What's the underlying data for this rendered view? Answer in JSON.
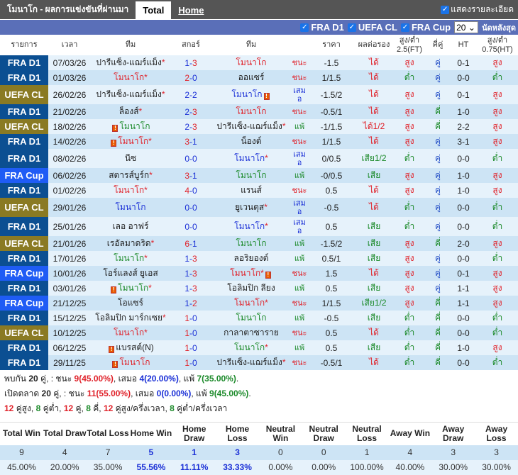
{
  "header": {
    "title": "โมนาโก - ผลการแข่งขันที่ผ่านมา",
    "tabs": [
      "Total",
      "Home"
    ],
    "show_detail": "แสดงรายละเอียด"
  },
  "filters": {
    "leagues": [
      "FRA D1",
      "UEFA CL",
      "FRA Cup"
    ],
    "count": "20",
    "last_label": "นัดหลังสุด"
  },
  "columns": [
    "รายการ",
    "เวลา",
    "ทีม",
    "สกอร์",
    "ทีม",
    "ราคา",
    "ผลต่อรอง",
    "สูง/ต่ำ 2.5(FT)",
    "คี่คู่",
    "HT",
    "สูง/ต่ำ 0.75(HT)"
  ],
  "colors": {
    "FRA D1": "#0b4f92",
    "UEFA CL": "#8a7a23",
    "FRA Cup": "#1f5cf5",
    "win": "#e0222a",
    "lose": "#1c8a2a",
    "draw": "#1a2fd6"
  },
  "matches": [
    {
      "league": "FRA D1",
      "date": "07/03/26",
      "home": {
        "name": "ปารีแซ็ง-แฌร์แม็ง",
        "star": "*"
      },
      "score": "1-3",
      "away": {
        "name": "โมนาโก",
        "mc": "win"
      },
      "result": "ชนะ",
      "odds": "-1.5",
      "ah": "ได้",
      "ou": "สูง",
      "oe": "คู่",
      "ht": "0-1",
      "htou": "สูง"
    },
    {
      "league": "FRA D1",
      "date": "01/03/26",
      "home": {
        "name": "โมนาโก",
        "star": "*",
        "mc": "win"
      },
      "score": "2-0",
      "away": {
        "name": "ออแซร์"
      },
      "result": "ชนะ",
      "odds": "1/1.5",
      "ah": "ได้",
      "ou": "ต่ำ",
      "oe": "คู่",
      "ht": "0-0",
      "htou": "ต่ำ"
    },
    {
      "league": "UEFA CL",
      "date": "26/02/26",
      "home": {
        "name": "ปารีแซ็ง-แฌร์แม็ง",
        "star": "*"
      },
      "score": "2-2",
      "away": {
        "name": "โมนาโก",
        "mc": "draw",
        "card": "after"
      },
      "result": "เสมอ",
      "odds": "-1.5/2",
      "ah": "ได้",
      "ou": "สูง",
      "oe": "คู่",
      "ht": "0-1",
      "htou": "สูง"
    },
    {
      "league": "FRA D1",
      "date": "21/02/26",
      "home": {
        "name": "ล็องส์",
        "star": "*"
      },
      "score": "2-3",
      "away": {
        "name": "โมนาโก",
        "mc": "win"
      },
      "result": "ชนะ",
      "odds": "-0.5/1",
      "ah": "ได้",
      "ou": "สูง",
      "oe": "คี่",
      "ht": "1-0",
      "htou": "สูง"
    },
    {
      "league": "UEFA CL",
      "date": "18/02/26",
      "home": {
        "name": "โมนาโก",
        "mc": "lose",
        "card": "before"
      },
      "score": "2-3",
      "away": {
        "name": "ปารีแซ็ง-แฌร์แม็ง",
        "star": "*"
      },
      "result": "แพ้",
      "odds": "-1/1.5",
      "ah": "ได้1/2",
      "ou": "สูง",
      "oe": "คี่",
      "ht": "2-2",
      "htou": "สูง"
    },
    {
      "league": "FRA D1",
      "date": "14/02/26",
      "home": {
        "name": "โมนาโก",
        "star": "*",
        "mc": "win",
        "card": "before"
      },
      "score": "3-1",
      "away": {
        "name": "น็องต์"
      },
      "result": "ชนะ",
      "odds": "1/1.5",
      "ah": "ได้",
      "ou": "สูง",
      "oe": "คู่",
      "ht": "3-1",
      "htou": "สูง"
    },
    {
      "league": "FRA D1",
      "date": "08/02/26",
      "home": {
        "name": "นีซ"
      },
      "score": "0-0",
      "away": {
        "name": "โมนาโก",
        "star": "*",
        "mc": "draw"
      },
      "result": "เสมอ",
      "odds": "0/0.5",
      "ah": "เสีย1/2",
      "ou": "ต่ำ",
      "oe": "คู่",
      "ht": "0-0",
      "htou": "ต่ำ"
    },
    {
      "league": "FRA Cup",
      "date": "06/02/26",
      "home": {
        "name": "สตารส์บูร์ก",
        "star": "*"
      },
      "score": "3-1",
      "away": {
        "name": "โมนาโก",
        "mc": "lose"
      },
      "result": "แพ้",
      "odds": "-0/0.5",
      "ah": "เสีย",
      "ou": "สูง",
      "oe": "คู่",
      "ht": "1-0",
      "htou": "สูง"
    },
    {
      "league": "FRA D1",
      "date": "01/02/26",
      "home": {
        "name": "โมนาโก",
        "star": "*",
        "mc": "win"
      },
      "score": "4-0",
      "away": {
        "name": "แรนส์"
      },
      "result": "ชนะ",
      "odds": "0.5",
      "ah": "ได้",
      "ou": "สูง",
      "oe": "คู่",
      "ht": "1-0",
      "htou": "สูง"
    },
    {
      "league": "UEFA CL",
      "date": "29/01/26",
      "home": {
        "name": "โมนาโก",
        "mc": "draw"
      },
      "score": "0-0",
      "away": {
        "name": "ยูเวนตุส",
        "star": "*"
      },
      "result": "เสมอ",
      "odds": "-0.5",
      "ah": "ได้",
      "ou": "ต่ำ",
      "oe": "คู่",
      "ht": "0-0",
      "htou": "ต่ำ"
    },
    {
      "league": "FRA D1",
      "date": "25/01/26",
      "home": {
        "name": "เลอ อาฟร์"
      },
      "score": "0-0",
      "away": {
        "name": "โมนาโก",
        "star": "*",
        "mc": "draw"
      },
      "result": "เสมอ",
      "odds": "0.5",
      "ah": "เสีย",
      "ou": "ต่ำ",
      "oe": "คู่",
      "ht": "0-0",
      "htou": "ต่ำ"
    },
    {
      "league": "UEFA CL",
      "date": "21/01/26",
      "home": {
        "name": "เรอัลมาดริด",
        "star": "*"
      },
      "score": "6-1",
      "away": {
        "name": "โมนาโก",
        "mc": "lose"
      },
      "result": "แพ้",
      "odds": "-1.5/2",
      "ah": "เสีย",
      "ou": "สูง",
      "oe": "คี่",
      "ht": "2-0",
      "htou": "สูง"
    },
    {
      "league": "FRA D1",
      "date": "17/01/26",
      "home": {
        "name": "โมนาโก",
        "star": "*",
        "mc": "lose"
      },
      "score": "1-3",
      "away": {
        "name": "ลอริยองต์"
      },
      "result": "แพ้",
      "odds": "0.5/1",
      "ah": "เสีย",
      "ou": "สูง",
      "oe": "คู่",
      "ht": "0-0",
      "htou": "ต่ำ"
    },
    {
      "league": "FRA Cup",
      "date": "10/01/26",
      "home": {
        "name": "โอร์แลงส์ ยูเอส"
      },
      "score": "1-3",
      "away": {
        "name": "โมนาโก",
        "star": "*",
        "mc": "win",
        "card": "after"
      },
      "result": "ชนะ",
      "odds": "1.5",
      "ah": "ได้",
      "ou": "สูง",
      "oe": "คู่",
      "ht": "0-1",
      "htou": "สูง"
    },
    {
      "league": "FRA D1",
      "date": "03/01/26",
      "home": {
        "name": "โมนาโก",
        "star": "*",
        "mc": "lose",
        "card": "before"
      },
      "score": "1-3",
      "away": {
        "name": "โอลิมปิก ลียง"
      },
      "result": "แพ้",
      "odds": "0.5",
      "ah": "เสีย",
      "ou": "สูง",
      "oe": "คู่",
      "ht": "1-1",
      "htou": "สูง"
    },
    {
      "league": "FRA Cup",
      "date": "21/12/25",
      "home": {
        "name": "โอแซร์"
      },
      "score": "1-2",
      "away": {
        "name": "โมนาโก",
        "star": "*",
        "mc": "win"
      },
      "result": "ชนะ",
      "odds": "1/1.5",
      "ah": "เสีย1/2",
      "ou": "สูง",
      "oe": "คี่",
      "ht": "1-1",
      "htou": "สูง"
    },
    {
      "league": "FRA D1",
      "date": "15/12/25",
      "home": {
        "name": "โอลิมปิก มาร์กเซย",
        "star": "*"
      },
      "score": "1-0",
      "away": {
        "name": "โมนาโก",
        "mc": "lose"
      },
      "result": "แพ้",
      "odds": "-0.5",
      "ah": "เสีย",
      "ou": "ต่ำ",
      "oe": "คี่",
      "ht": "0-0",
      "htou": "ต่ำ"
    },
    {
      "league": "UEFA CL",
      "date": "10/12/25",
      "home": {
        "name": "โมนาโก",
        "star": "*",
        "mc": "win"
      },
      "score": "1-0",
      "away": {
        "name": "กาลาตาซาราย"
      },
      "result": "ชนะ",
      "odds": "0.5",
      "ah": "ได้",
      "ou": "ต่ำ",
      "oe": "คี่",
      "ht": "0-0",
      "htou": "ต่ำ"
    },
    {
      "league": "FRA D1",
      "date": "06/12/25",
      "home": {
        "name": "แบรสต์(N)",
        "card": "before"
      },
      "score": "1-0",
      "away": {
        "name": "โมนาโก",
        "star": "*",
        "mc": "lose"
      },
      "result": "แพ้",
      "odds": "0.5",
      "ah": "เสีย",
      "ou": "ต่ำ",
      "oe": "คี่",
      "ht": "1-0",
      "htou": "สูง"
    },
    {
      "league": "FRA D1",
      "date": "29/11/25",
      "home": {
        "name": "โมนาโก",
        "mc": "win",
        "card": "before"
      },
      "score": "1-0",
      "away": {
        "name": "ปารีแซ็ง-แฌร์แม็ง",
        "star": "*"
      },
      "result": "ชนะ",
      "odds": "-0.5/1",
      "ah": "ได้",
      "ou": "ต่ำ",
      "oe": "คี่",
      "ht": "0-0",
      "htou": "ต่ำ"
    }
  ],
  "summary": {
    "line1": {
      "a": "พบกัน ",
      "n": "20",
      "b": " คู่, : ชนะ ",
      "w": "9",
      "wp": "(45.00%)",
      "c": ", เสมอ ",
      "d": "4",
      "dp": "(20.00%)",
      "e": ", แพ้ ",
      "l": "7",
      "lp": "(35.00%)",
      "f": "."
    },
    "line2": {
      "a": "เปิดตลาด ",
      "n": "20",
      "b": " คู่, : ชนะ ",
      "w": "11",
      "wp": "(55.00%)",
      "c": ", เสมอ ",
      "d": "0",
      "dp": "(0.00%)",
      "e": ", แพ้ ",
      "l": "9",
      "lp": "(45.00%)",
      "f": "."
    },
    "line3": [
      {
        "n": "12",
        "t": " คู่สูง, ",
        "c": "win"
      },
      {
        "n": "8",
        "t": " คู่ต่ำ, ",
        "c": "lose"
      },
      {
        "n": "12",
        "t": " คู่, ",
        "c": "win"
      },
      {
        "n": "8",
        "t": " คี่, ",
        "c": "lose"
      },
      {
        "n": "12",
        "t": " คู่สูง/ครึ่งเวลา, ",
        "c": "win"
      },
      {
        "n": "8",
        "t": " คู่ต่ำ/ครึ่งเวลา",
        "c": "lose"
      }
    ]
  },
  "stats": {
    "headers": [
      "Total Win",
      "Total Draw",
      "Total Loss",
      "Home Win",
      "Home Draw",
      "Home Loss",
      "Neutral Win",
      "Neutral Draw",
      "Neutral Loss",
      "Away Win",
      "Away Draw",
      "Away Loss"
    ],
    "counts": [
      "9",
      "4",
      "7",
      "5",
      "1",
      "3",
      "0",
      "0",
      "1",
      "4",
      "3",
      "3"
    ],
    "percents": [
      "45.00%",
      "20.00%",
      "35.00%",
      "55.56%",
      "11.11%",
      "33.33%",
      "0.00%",
      "0.00%",
      "100.00%",
      "40.00%",
      "30.00%",
      "30.00%"
    ]
  }
}
